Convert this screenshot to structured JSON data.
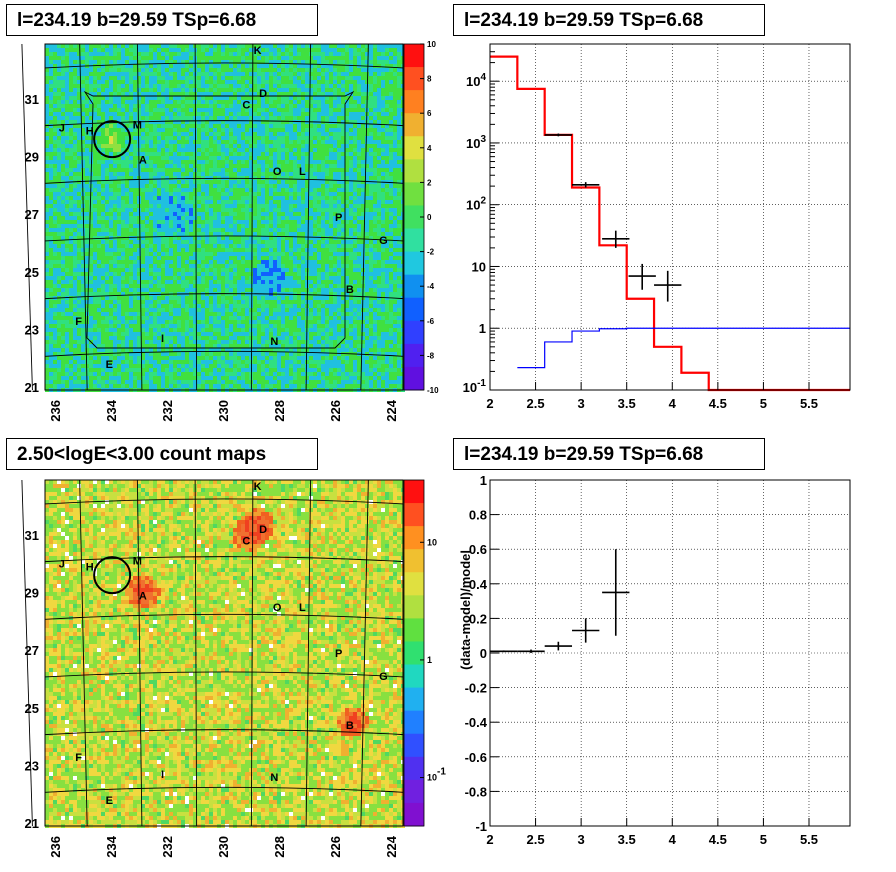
{
  "panels": {
    "top_left_title": "l=234.19 b=29.59 TSp=6.68",
    "top_right_title": "l=234.19 b=29.59 TSp=6.68",
    "bottom_left_title": "2.50<logE<3.00 count maps",
    "bottom_right_title": "l=234.19 b=29.59 TSp=6.68"
  },
  "colors": {
    "data": "#000000",
    "model": "#ff0000",
    "background_model": "#0000ff",
    "grid": "#000000",
    "map_background": "#3fd840",
    "count_map_background": "#e6e040"
  },
  "chart_data": [
    {
      "type": "heatmap",
      "title": "l=234.19 b=29.59 TSp=6.68",
      "description_of_axes": "galactic longitude / latitude",
      "x_ticks": [
        "236",
        "234",
        "232",
        "230",
        "228",
        "226",
        "224"
      ],
      "y_ticks": [
        "21",
        "23",
        "25",
        "27",
        "29",
        "31"
      ],
      "xlim": [
        236.4,
        223.6
      ],
      "ylim": [
        20.9,
        32.9
      ],
      "colorbar_ticks": [
        "10",
        "8",
        "6",
        "4",
        "2",
        "0",
        "-2",
        "-4",
        "-6",
        "-8",
        "-10"
      ],
      "colorbar_range": [
        -10,
        10
      ],
      "source_labels": [
        {
          "name": "K",
          "l": 228.8,
          "b": 32.7
        },
        {
          "name": "D",
          "l": 228.6,
          "b": 31.2
        },
        {
          "name": "C",
          "l": 229.2,
          "b": 30.8
        },
        {
          "name": "J",
          "l": 235.8,
          "b": 30.0
        },
        {
          "name": "H",
          "l": 234.8,
          "b": 29.9
        },
        {
          "name": "M",
          "l": 233.1,
          "b": 30.1
        },
        {
          "name": "A",
          "l": 232.9,
          "b": 28.9
        },
        {
          "name": "O",
          "l": 228.1,
          "b": 28.5
        },
        {
          "name": "L",
          "l": 227.2,
          "b": 28.5
        },
        {
          "name": "P",
          "l": 225.9,
          "b": 26.9
        },
        {
          "name": "G",
          "l": 224.3,
          "b": 26.1
        },
        {
          "name": "B",
          "l": 225.5,
          "b": 24.4
        },
        {
          "name": "F",
          "l": 235.2,
          "b": 23.3
        },
        {
          "name": "I",
          "l": 232.2,
          "b": 22.7
        },
        {
          "name": "N",
          "l": 228.2,
          "b": 22.6
        },
        {
          "name": "E",
          "l": 234.1,
          "b": 21.8
        }
      ],
      "circle": {
        "l": 234.0,
        "b": 29.6,
        "radius_deg": 0.45
      }
    },
    {
      "type": "line",
      "title": "l=234.19 b=29.59 TSp=6.68",
      "x_ticks": [
        "2",
        "2.5",
        "3",
        "3.5",
        "4",
        "4.5",
        "5",
        "5.5"
      ],
      "xlim": [
        2.0,
        5.95
      ],
      "y_scale": "log",
      "ylim": [
        0.1,
        40000
      ],
      "y_ticks": [
        "10^-1",
        "1",
        "10",
        "10^2",
        "10^3",
        "10^4"
      ],
      "grid": true,
      "series": [
        {
          "role": "model",
          "style": "step",
          "color": "#ff0000",
          "edges": [
            2.0,
            2.3,
            2.6,
            2.9,
            3.2,
            3.5,
            3.8,
            4.1,
            4.4,
            5.95
          ],
          "values": [
            25000,
            7500,
            1350,
            190,
            22,
            3.0,
            0.5,
            0.19,
            0.1
          ]
        },
        {
          "role": "background",
          "style": "step",
          "color": "#0000ff",
          "edges": [
            2.3,
            2.6,
            2.9,
            3.2,
            3.5,
            5.95
          ],
          "values": [
            0.23,
            0.6,
            0.9,
            0.98,
            1.0
          ]
        },
        {
          "role": "data",
          "style": "errorbar",
          "color": "#000000",
          "points": [
            {
              "x": 2.75,
              "y": 1350,
              "xerr": 0.15,
              "ylo": 1280,
              "yhi": 1420
            },
            {
              "x": 3.05,
              "y": 210,
              "xerr": 0.15,
              "ylo": 190,
              "yhi": 232
            },
            {
              "x": 3.38,
              "y": 28,
              "xerr": 0.15,
              "ylo": 20,
              "yhi": 38
            },
            {
              "x": 3.67,
              "y": 7,
              "xerr": 0.15,
              "ylo": 4.2,
              "yhi": 11
            },
            {
              "x": 3.95,
              "y": 5,
              "xerr": 0.15,
              "ylo": 2.7,
              "yhi": 8.5
            }
          ]
        }
      ]
    },
    {
      "type": "heatmap",
      "title": "2.50<logE<3.00 count maps",
      "x_ticks": [
        "236",
        "234",
        "232",
        "230",
        "228",
        "226",
        "224"
      ],
      "y_ticks": [
        "21",
        "23",
        "25",
        "27",
        "29",
        "31"
      ],
      "xlim": [
        236.4,
        223.6
      ],
      "ylim": [
        20.9,
        32.9
      ],
      "colorbar_scale": "log",
      "colorbar_ticks": [
        "10",
        "1",
        "10^-1"
      ],
      "hot_spots": [
        {
          "name": "A",
          "l": 232.9,
          "b": 29.0,
          "strength": 1.0
        },
        {
          "name": "C",
          "l": 229.1,
          "b": 31.0,
          "strength": 0.9
        },
        {
          "name": "D",
          "l": 228.7,
          "b": 31.4,
          "strength": 0.7
        },
        {
          "name": "B",
          "l": 225.4,
          "b": 24.5,
          "strength": 0.8
        }
      ]
    },
    {
      "type": "scatter",
      "title": "l=234.19 b=29.59 TSp=6.68",
      "ylabel": "(data-model)/model",
      "x_ticks": [
        "2",
        "2.5",
        "3",
        "3.5",
        "4",
        "4.5",
        "5",
        "5.5"
      ],
      "xlim": [
        2.0,
        5.95
      ],
      "ylim": [
        -1.0,
        1.0
      ],
      "y_ticks": [
        "-1",
        "-0.8",
        "-0.6",
        "-0.4",
        "-0.2",
        "0",
        "0.2",
        "0.4",
        "0.6",
        "0.8",
        "1"
      ],
      "grid": true,
      "points": [
        {
          "x": 2.15,
          "y": 0.01,
          "xerr": 0.15,
          "ylo": 0.005,
          "yhi": 0.015
        },
        {
          "x": 2.45,
          "y": 0.01,
          "xerr": 0.15,
          "ylo": 0.0,
          "yhi": 0.02
        },
        {
          "x": 2.75,
          "y": 0.04,
          "xerr": 0.15,
          "ylo": 0.015,
          "yhi": 0.065
        },
        {
          "x": 3.05,
          "y": 0.13,
          "xerr": 0.15,
          "ylo": 0.06,
          "yhi": 0.2
        },
        {
          "x": 3.38,
          "y": 0.35,
          "xerr": 0.15,
          "ylo": 0.1,
          "yhi": 0.6
        }
      ]
    }
  ]
}
